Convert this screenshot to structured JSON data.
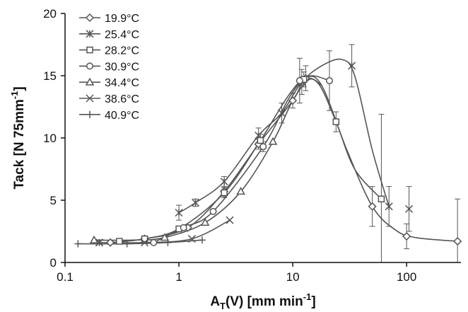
{
  "chart_data": {
    "type": "scatter",
    "title": "",
    "xlabel": "A",
    "xlabel_sub": "T",
    "xlabel_rest": "(V) [mm min",
    "xlabel_sup": "-1",
    "xlabel_end": "]",
    "ylabel": "Tack [N 75mm",
    "ylabel_sup": "-1",
    "ylabel_end": "]",
    "x_scale": "log",
    "xlim": [
      0.1,
      300
    ],
    "ylim": [
      0,
      20
    ],
    "x_ticks": [
      0.1,
      1,
      10,
      100
    ],
    "x_tick_labels": [
      "0.1",
      "1",
      "10",
      "100"
    ],
    "y_ticks": [
      0,
      5,
      10,
      15,
      20
    ],
    "y_tick_labels": [
      "0",
      "5",
      "10",
      "15",
      "20"
    ],
    "grid": false,
    "legend_position": "top-left",
    "marker_color": "#555555",
    "series": [
      {
        "name": "19.9°C",
        "marker": "diamond",
        "x": [
          0.25,
          0.5,
          1.2,
          2.5,
          5.0,
          10.0,
          13.0,
          50.0,
          100.0,
          280.0
        ],
        "y": [
          1.6,
          1.9,
          2.8,
          5.7,
          9.5,
          13.0,
          14.8,
          4.5,
          2.1,
          1.7
        ],
        "err": [
          0,
          0,
          0,
          0.4,
          0.4,
          0.6,
          1.0,
          1.6,
          1.0,
          3.4
        ],
        "curve_x": [
          0.25,
          0.5,
          1.2,
          2.5,
          5,
          10,
          13,
          18,
          30,
          50,
          80,
          120,
          280
        ],
        "curve_y": [
          1.6,
          1.9,
          2.8,
          5.7,
          9.5,
          13.0,
          14.8,
          14.2,
          9.0,
          4.5,
          2.6,
          2.0,
          1.7
        ]
      },
      {
        "name": "25.4°C",
        "marker": "asterisk",
        "x": [
          0.2,
          1.0,
          1.4,
          2.5,
          5.0,
          8.0,
          12.0,
          33.0,
          70.0
        ],
        "y": [
          1.6,
          4.0,
          4.8,
          6.5,
          10.2,
          12.0,
          14.5,
          15.8,
          4.5
        ],
        "err": [
          0,
          0.6,
          0.3,
          0.4,
          0.6,
          0.8,
          1.0,
          1.7,
          1.6
        ],
        "curve_x": [
          1.0,
          1.4,
          2.5,
          5,
          8,
          12,
          18,
          27,
          35,
          50,
          70
        ],
        "curve_y": [
          4.0,
          4.8,
          6.5,
          10.2,
          12.0,
          14.5,
          15.8,
          16.3,
          15.0,
          9.0,
          4.5
        ]
      },
      {
        "name": "28.2°C",
        "marker": "square",
        "x": [
          0.3,
          0.5,
          1.0,
          2.5,
          5.2,
          12.5,
          24.0,
          60.0
        ],
        "y": [
          1.7,
          1.9,
          2.7,
          5.6,
          9.8,
          14.7,
          11.3,
          5.1
        ],
        "err": [
          0,
          0,
          0,
          0.4,
          0.5,
          0.6,
          0.8,
          6.8
        ],
        "curve_x": [
          0.3,
          0.5,
          1.0,
          2.5,
          5.2,
          9,
          12.5,
          17,
          24,
          35,
          60
        ],
        "curve_y": [
          1.7,
          1.9,
          2.7,
          5.6,
          9.8,
          13.3,
          14.7,
          14.3,
          11.3,
          7.5,
          5.1
        ]
      },
      {
        "name": "30.9°C",
        "marker": "circle",
        "x": [
          0.6,
          1.1,
          2.0,
          5.5,
          11.5,
          21.0
        ],
        "y": [
          1.6,
          2.8,
          4.1,
          9.3,
          14.6,
          14.6
        ],
        "err": [
          0,
          0,
          0,
          0.4,
          1.8,
          2.4
        ],
        "curve_x": [
          0.6,
          1.1,
          2.0,
          5.5,
          9,
          12,
          15,
          21
        ],
        "curve_y": [
          1.6,
          2.8,
          4.1,
          9.3,
          13.0,
          14.6,
          15.0,
          14.6
        ]
      },
      {
        "name": "34.4°C",
        "marker": "triangle",
        "x": [
          0.18,
          0.75,
          1.7,
          3.5,
          6.7
        ],
        "y": [
          1.8,
          2.0,
          3.2,
          5.7,
          9.7
        ],
        "err": [
          0,
          0,
          0,
          0,
          0
        ],
        "curve_x": [
          0.18,
          0.4,
          0.75,
          1.7,
          3.5,
          6.7,
          10,
          14,
          18
        ],
        "curve_y": [
          1.8,
          1.8,
          2.0,
          3.2,
          5.7,
          9.7,
          13.0,
          14.7,
          14.2
        ]
      },
      {
        "name": "38.6°C",
        "marker": "x",
        "x": [
          0.2,
          0.5,
          1.3,
          2.8,
          105.0
        ],
        "y": [
          1.6,
          1.6,
          1.9,
          3.4,
          4.3
        ],
        "err": [
          0,
          0,
          0,
          0,
          1.8
        ],
        "curve_x": [
          0.2,
          0.5,
          1.3,
          2.8
        ],
        "curve_y": [
          1.6,
          1.6,
          1.9,
          3.4
        ]
      },
      {
        "name": "40.9°C",
        "marker": "plus",
        "x": [
          0.13,
          0.35,
          0.8,
          1.6
        ],
        "y": [
          1.5,
          1.5,
          1.6,
          1.8
        ],
        "err": [
          0,
          0,
          0,
          0
        ],
        "curve_x": [
          0.13,
          0.35,
          0.8,
          1.6
        ],
        "curve_y": [
          1.5,
          1.5,
          1.6,
          1.8
        ]
      }
    ]
  }
}
